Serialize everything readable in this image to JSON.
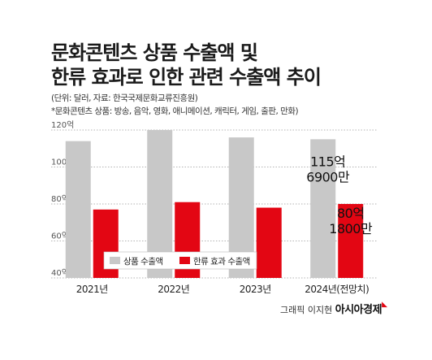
{
  "header": {
    "title_line1": "문화콘텐츠 상품 수출액 및",
    "title_line2": "한류 효과로 인한 관련 수출액 추이"
  },
  "notes": {
    "unit_source": "(단위: 달러, 자료: 한국국제문화교류진흥원)",
    "definition": "*문화콘텐츠 상품: 방송, 음악, 영화, 애니메이션, 캐릭터, 게임, 출판, 만화)"
  },
  "credit": {
    "byline": "그래픽 이지현",
    "brand": "아시아경제"
  },
  "colors": {
    "series1": "#c8c8c8",
    "series2": "#e30613",
    "grid": "#9a9a9a"
  },
  "chart_data": {
    "type": "bar",
    "categories": [
      "2021년",
      "2022년",
      "2023년",
      "2024년(전망치)"
    ],
    "series": [
      {
        "name": "상품 수출액",
        "values": [
          114,
          120,
          116,
          115
        ]
      },
      {
        "name": "한류 효과 수출액",
        "values": [
          77,
          81,
          78,
          80
        ]
      }
    ],
    "y_ticks": [
      "120억",
      "100억",
      "80억",
      "60억",
      "40억"
    ],
    "ylim": [
      40,
      120
    ],
    "grid": true,
    "legend_position": "bottom-left",
    "annotations": [
      {
        "category": "2024년(전망치)",
        "series": "상품 수출액",
        "lines": [
          "115억",
          "6900만"
        ]
      },
      {
        "category": "2024년(전망치)",
        "series": "한류 효과 수출액",
        "lines": [
          "80억",
          "1800만"
        ]
      }
    ]
  }
}
